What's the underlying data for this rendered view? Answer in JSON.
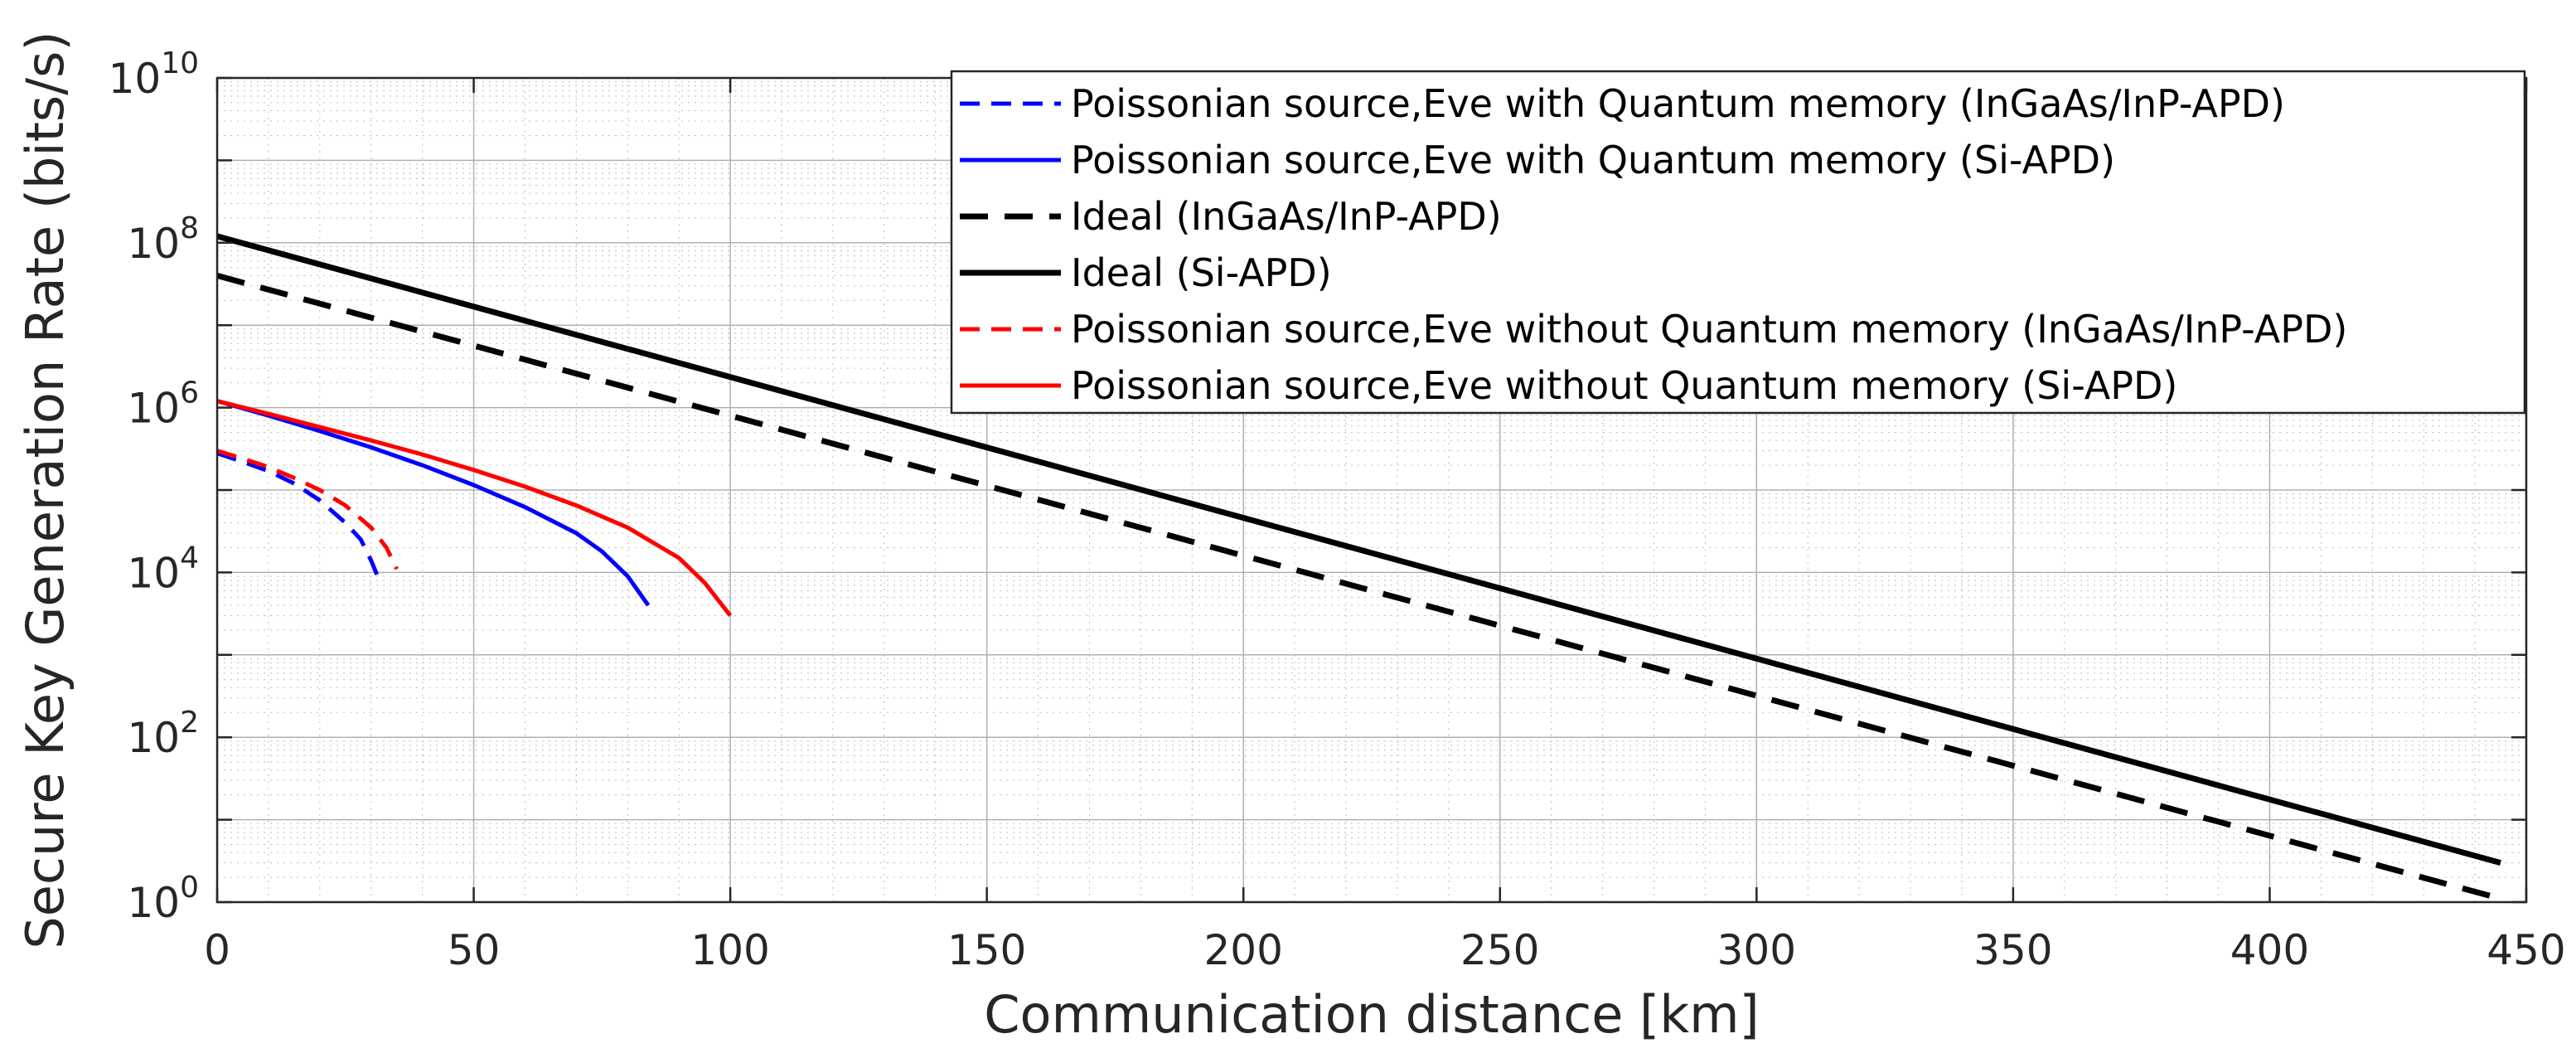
{
  "chart_data": {
    "type": "line",
    "xlabel": "Communication distance [km]",
    "ylabel": "Secure Key Generation Rate (bits/s)",
    "xlim": [
      0,
      450
    ],
    "ylim": [
      1,
      10000000000
    ],
    "yscale": "log",
    "grid": true,
    "minor_grid": true,
    "legend_position": "top-right",
    "x_ticks": [
      "0",
      "50",
      "100",
      "150",
      "200",
      "250",
      "300",
      "350",
      "400",
      "450"
    ],
    "y_ticks": [
      {
        "base": "10",
        "exp": "0"
      },
      {
        "base": "10",
        "exp": "2"
      },
      {
        "base": "10",
        "exp": "4"
      },
      {
        "base": "10",
        "exp": "6"
      },
      {
        "base": "10",
        "exp": "8"
      },
      {
        "base": "10",
        "exp": "10"
      }
    ],
    "series": [
      {
        "name": "Poissonian source,Eve with Quantum memory (InGaAs/InP-APD)",
        "color": "#0000ff",
        "dash": "dashed",
        "x": [
          0,
          5,
          10,
          15,
          20,
          25,
          28,
          30,
          32
        ],
        "y": [
          280000,
          220000,
          170000,
          120000,
          75000,
          40000,
          25000,
          14000,
          7000
        ]
      },
      {
        "name": "Poissonian source,Eve with Quantum memory (Si-APD)",
        "color": "#0000ff",
        "dash": "solid",
        "x": [
          0,
          10,
          20,
          30,
          40,
          50,
          60,
          70,
          75,
          80,
          84
        ],
        "y": [
          1200000,
          800000,
          520000,
          330000,
          200000,
          115000,
          62000,
          30000,
          18000,
          9000,
          4000
        ]
      },
      {
        "name": "Ideal (InGaAs/InP-APD)",
        "color": "#000000",
        "dash": "dashed",
        "x": [
          0,
          445
        ],
        "y": [
          40000000,
          1.1
        ]
      },
      {
        "name": "Ideal (Si-APD)",
        "color": "#000000",
        "dash": "solid",
        "x": [
          0,
          445
        ],
        "y": [
          120000000,
          3
        ]
      },
      {
        "name": "Poissonian source,Eve without Quantum memory (InGaAs/InP-APD)",
        "color": "#ff0000",
        "dash": "dashed",
        "x": [
          0,
          5,
          10,
          15,
          20,
          25,
          30,
          33,
          35
        ],
        "y": [
          300000,
          240000,
          190000,
          140000,
          100000,
          65000,
          35000,
          20000,
          11000
        ]
      },
      {
        "name": "Poissonian source,Eve without Quantum memory (Si-APD)",
        "color": "#ff0000",
        "dash": "solid",
        "x": [
          0,
          10,
          20,
          30,
          40,
          50,
          60,
          70,
          80,
          90,
          95,
          100
        ],
        "y": [
          1200000,
          840000,
          580000,
          400000,
          270000,
          175000,
          110000,
          65000,
          35000,
          15000,
          7500,
          3000
        ]
      }
    ]
  }
}
